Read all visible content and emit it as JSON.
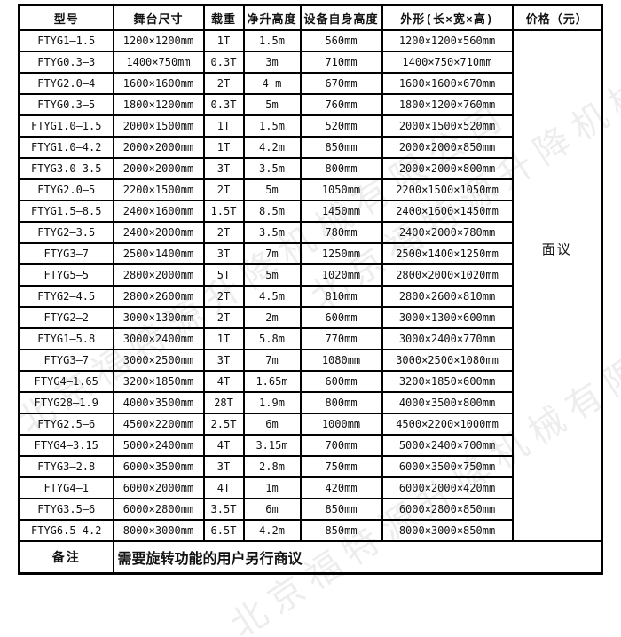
{
  "table": {
    "headers": [
      "型号",
      "舞台尺寸",
      "载重",
      "净升高度",
      "设备自身高度",
      "外形(长×宽×高)",
      "价格（元）"
    ],
    "price_value": "面议",
    "rows": [
      {
        "model": "FTYG1—1.5",
        "stage": "1200×1200mm",
        "load": "1T",
        "lift": "1.5m",
        "own": "560mm",
        "dims": "1200×1200×560mm"
      },
      {
        "model": "FTYG0.3—3",
        "stage": "1400×750mm",
        "load": "0.3T",
        "lift": "3m",
        "own": "710mm",
        "dims": "1400×750×710mm"
      },
      {
        "model": "FTYG2.0—4",
        "stage": "1600×1600mm",
        "load": "2T",
        "lift": "4 m",
        "own": "670mm",
        "dims": "1600×1600×670mm"
      },
      {
        "model": "FTYG0.3—5",
        "stage": "1800×1200mm",
        "load": "0.3T",
        "lift": "5m",
        "own": "760mm",
        "dims": "1800×1200×760mm"
      },
      {
        "model": "FTYG1.0—1.5",
        "stage": "2000×1500mm",
        "load": "1T",
        "lift": "1.5m",
        "own": "520mm",
        "dims": "2000×1500×520mm"
      },
      {
        "model": "FTYG1.0—4.2",
        "stage": "2000×2000mm",
        "load": "1T",
        "lift": "4.2m",
        "own": "850mm",
        "dims": "2000×2000×850mm"
      },
      {
        "model": "FTYG3.0—3.5",
        "stage": "2000×2000mm",
        "load": "3T",
        "lift": "3.5m",
        "own": "800mm",
        "dims": "2000×2000×800mm"
      },
      {
        "model": "FTYG2.0—5",
        "stage": "2200×1500mm",
        "load": "2T",
        "lift": "5m",
        "own": "1050mm",
        "dims": "2200×1500×1050mm"
      },
      {
        "model": "FTYG1.5—8.5",
        "stage": "2400×1600mm",
        "load": "1.5T",
        "lift": "8.5m",
        "own": "1450mm",
        "dims": "2400×1600×1450mm"
      },
      {
        "model": "FTYG2—3.5",
        "stage": "2400×2000mm",
        "load": "2T",
        "lift": "3.5m",
        "own": "780mm",
        "dims": "2400×2000×780mm"
      },
      {
        "model": "FTYG3—7",
        "stage": "2500×1400mm",
        "load": "3T",
        "lift": "7m",
        "own": "1250mm",
        "dims": "2500×1400×1250mm"
      },
      {
        "model": "FTYG5—5",
        "stage": "2800×2000mm",
        "load": "5T",
        "lift": "5m",
        "own": "1020mm",
        "dims": "2800×2000×1020mm"
      },
      {
        "model": "FTYG2—4.5",
        "stage": "2800×2600mm",
        "load": "2T",
        "lift": "4.5m",
        "own": "810mm",
        "dims": "2800×2600×810mm"
      },
      {
        "model": "FTYG2—2",
        "stage": "3000×1300mm",
        "load": "2T",
        "lift": "2m",
        "own": "600mm",
        "dims": "3000×1300×600mm"
      },
      {
        "model": "FTYG1—5.8",
        "stage": "3000×2400mm",
        "load": "1T",
        "lift": "5.8m",
        "own": "770mm",
        "dims": "3000×2400×770mm"
      },
      {
        "model": "FTYG3—7",
        "stage": "3000×2500mm",
        "load": "3T",
        "lift": "7m",
        "own": "1080mm",
        "dims": "3000×2500×1080mm"
      },
      {
        "model": "FTYG4—1.65",
        "stage": "3200×1850mm",
        "load": "4T",
        "lift": "1.65m",
        "own": "600mm",
        "dims": "3200×1850×600mm"
      },
      {
        "model": "FTYG28—1.9",
        "stage": "4000×3500mm",
        "load": "28T",
        "lift": "1.9m",
        "own": "800mm",
        "dims": "4000×3500×800mm"
      },
      {
        "model": "FTYG2.5—6",
        "stage": "4500×2200mm",
        "load": "2.5T",
        "lift": "6m",
        "own": "1000mm",
        "dims": "4500×2200×1000mm"
      },
      {
        "model": "FTYG4—3.15",
        "stage": "5000×2400mm",
        "load": "4T",
        "lift": "3.15m",
        "own": "700mm",
        "dims": "5000×2400×700mm"
      },
      {
        "model": "FTYG3—2.8",
        "stage": "6000×3500mm",
        "load": "3T",
        "lift": "2.8m",
        "own": "750mm",
        "dims": "6000×3500×750mm"
      },
      {
        "model": "FTYG4—1",
        "stage": "6000×2000mm",
        "load": "4T",
        "lift": "1m",
        "own": "420mm",
        "dims": "6000×2000×420mm"
      },
      {
        "model": "FTYG3.5—6",
        "stage": "6000×2800mm",
        "load": "3.5T",
        "lift": "6m",
        "own": "850mm",
        "dims": "6000×2800×850mm"
      },
      {
        "model": "FTYG6.5—4.2",
        "stage": "8000×3000mm",
        "load": "6.5T",
        "lift": "4.2m",
        "own": "850mm",
        "dims": "8000×3000×850mm"
      }
    ],
    "remark_label": "备注",
    "remark_text": "需要旋转功能的用户另行商议"
  },
  "watermark": {
    "text": "北京福特源升降机械有限公司"
  },
  "colors": {
    "border": "#000000",
    "text": "#111111",
    "background": "#ffffff",
    "watermark": "rgba(0,0,0,0.07)"
  }
}
